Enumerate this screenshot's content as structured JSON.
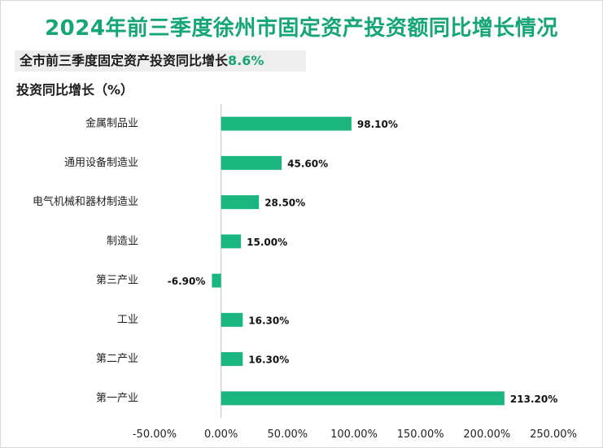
{
  "title": "2024年前三季度徐州市固定资产投资额同比增长情况",
  "subtitle": {
    "label": "全市前三季度固定资产投资同比增长",
    "value": "8.6%"
  },
  "colors": {
    "bar": "#1bb57f",
    "title": "#16a673",
    "axis": "#bfbfbf"
  },
  "chart_data": {
    "type": "bar",
    "orientation": "horizontal",
    "title": "2024年前三季度徐州市固定资产投资额同比增长情况",
    "ylabel": "投资同比增长（%）",
    "xlabel": "",
    "categories": [
      "金属制品业",
      "通用设备制造业",
      "电气机械和器材制造业",
      "制造业",
      "第三产业",
      "工业",
      "第二产业",
      "第一产业"
    ],
    "values": [
      98.1,
      45.6,
      28.5,
      15.0,
      -6.9,
      16.3,
      16.3,
      213.2
    ],
    "value_labels": [
      "98.10%",
      "45.60%",
      "28.50%",
      "15.00%",
      "-6.90%",
      "16.30%",
      "16.30%",
      "213.20%"
    ],
    "xlim": [
      -50,
      250
    ],
    "xticks": [
      -50,
      0,
      50,
      100,
      150,
      200,
      250
    ],
    "xtick_labels": [
      "-50.00%",
      "0.00%",
      "50.00%",
      "100.00%",
      "150.00%",
      "200.00%",
      "250.00%"
    ],
    "grid": false,
    "legend": "none"
  }
}
